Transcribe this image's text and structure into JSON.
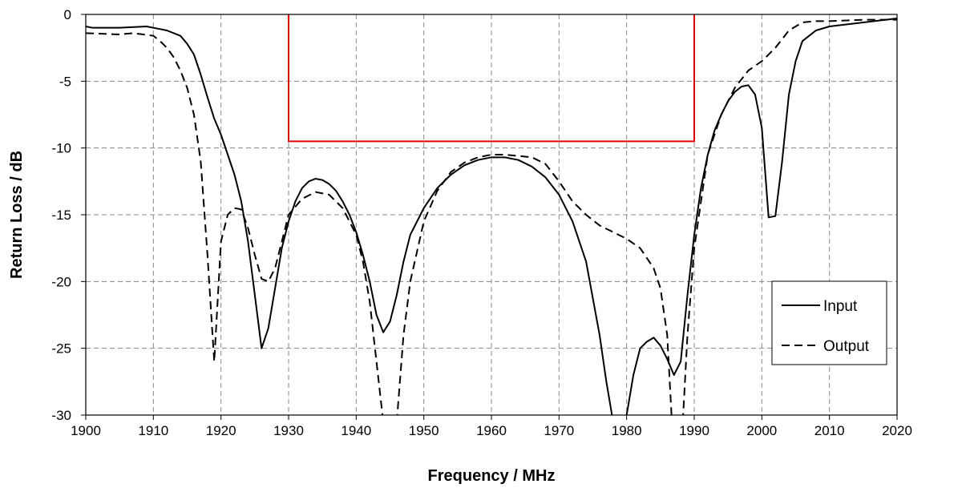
{
  "chart_data": {
    "type": "line",
    "title": "",
    "xlabel": "Frequency / MHz",
    "ylabel": "Return Loss / dB",
    "xlim": [
      1900,
      2020
    ],
    "ylim": [
      -30,
      0
    ],
    "xticks": [
      1900,
      1910,
      1920,
      1930,
      1940,
      1950,
      1960,
      1970,
      1980,
      1990,
      2000,
      2010,
      2020
    ],
    "yticks": [
      0,
      -5,
      -10,
      -15,
      -20,
      -25,
      -30
    ],
    "grid": true,
    "legend_position": "lower-right",
    "mask": {
      "color": "#e00000",
      "x": [
        1930,
        1930,
        1990,
        1990
      ],
      "y": [
        0,
        -9.5,
        -9.5,
        0
      ]
    },
    "series": [
      {
        "name": "Input",
        "style": "solid",
        "x": [
          1900,
          1901,
          1905,
          1909,
          1910,
          1912,
          1914,
          1915,
          1916,
          1917,
          1918,
          1919,
          1920,
          1921,
          1922,
          1923,
          1924,
          1925,
          1926,
          1927,
          1928,
          1929,
          1930,
          1931,
          1932,
          1933,
          1934,
          1935,
          1936,
          1937,
          1938,
          1939,
          1940,
          1941,
          1942,
          1943,
          1944,
          1945,
          1946,
          1947,
          1948,
          1950,
          1952,
          1954,
          1956,
          1958,
          1960,
          1962,
          1964,
          1966,
          1968,
          1970,
          1972,
          1974,
          1976,
          1977,
          1978,
          1979,
          1980,
          1981,
          1982,
          1983,
          1984,
          1985,
          1986,
          1987,
          1988,
          1989,
          1990,
          1991,
          1992,
          1993,
          1994,
          1995,
          1996,
          1997,
          1998,
          1999,
          2000,
          2001,
          2002,
          2003,
          2004,
          2005,
          2006,
          2008,
          2010,
          2015,
          2020
        ],
        "y": [
          -0.9,
          -1.0,
          -1.0,
          -0.9,
          -1.0,
          -1.2,
          -1.6,
          -2.2,
          -3.0,
          -4.5,
          -6.2,
          -7.8,
          -9.0,
          -10.5,
          -12.0,
          -14.0,
          -17.0,
          -21.0,
          -25.0,
          -23.5,
          -20.5,
          -17.5,
          -15.5,
          -14.0,
          -13.0,
          -12.5,
          -12.3,
          -12.4,
          -12.7,
          -13.2,
          -14.0,
          -15.0,
          -16.3,
          -18.0,
          -20.0,
          -22.5,
          -23.8,
          -23.0,
          -21.0,
          -18.5,
          -16.5,
          -14.5,
          -13.0,
          -12.0,
          -11.3,
          -10.9,
          -10.7,
          -10.7,
          -10.9,
          -11.4,
          -12.2,
          -13.5,
          -15.5,
          -18.5,
          -24.0,
          -27.5,
          -30.5,
          -31.0,
          -30.0,
          -27.0,
          -25.0,
          -24.5,
          -24.2,
          -24.8,
          -25.8,
          -27.0,
          -26.0,
          -21.0,
          -16.5,
          -13.0,
          -10.5,
          -8.7,
          -7.5,
          -6.5,
          -5.8,
          -5.4,
          -5.3,
          -6.0,
          -8.5,
          -15.2,
          -15.1,
          -11.0,
          -6.0,
          -3.5,
          -2.0,
          -1.2,
          -0.9,
          -0.6,
          -0.3
        ]
      },
      {
        "name": "Output",
        "style": "dashed",
        "x": [
          1900,
          1905,
          1907,
          1910,
          1911,
          1912,
          1913,
          1914,
          1915,
          1916,
          1917,
          1918,
          1919,
          1920,
          1921,
          1922,
          1923,
          1924,
          1925,
          1926,
          1927,
          1928,
          1929,
          1930,
          1932,
          1934,
          1936,
          1938,
          1940,
          1941,
          1942,
          1943,
          1944,
          1944.7,
          1946,
          1947,
          1948,
          1950,
          1952,
          1954,
          1956,
          1958,
          1960,
          1962,
          1964,
          1966,
          1968,
          1970,
          1972,
          1974,
          1976,
          1978,
          1980,
          1982,
          1984,
          1985,
          1986,
          1986.8,
          1988.2,
          1989,
          1990,
          1992,
          1994,
          1996,
          1998,
          2000,
          2002,
          2004,
          2006,
          2008,
          2010,
          2015,
          2020
        ],
        "y": [
          -1.4,
          -1.5,
          -1.4,
          -1.6,
          -2.0,
          -2.5,
          -3.2,
          -4.2,
          -5.5,
          -7.5,
          -11.0,
          -18.0,
          -26.0,
          -17.0,
          -15.0,
          -14.5,
          -14.6,
          -16.0,
          -18.0,
          -19.8,
          -20.0,
          -19.0,
          -17.0,
          -15.0,
          -13.8,
          -13.3,
          -13.5,
          -14.5,
          -16.5,
          -18.5,
          -21.5,
          -26.0,
          -30.5,
          -31.5,
          -30.5,
          -24.0,
          -20.0,
          -15.5,
          -13.2,
          -11.8,
          -11.1,
          -10.7,
          -10.5,
          -10.5,
          -10.6,
          -10.7,
          -11.2,
          -12.5,
          -14.0,
          -15.0,
          -15.8,
          -16.3,
          -16.8,
          -17.5,
          -19.0,
          -20.5,
          -24.0,
          -31.5,
          -31.5,
          -24.0,
          -17.5,
          -10.5,
          -7.5,
          -5.5,
          -4.2,
          -3.5,
          -2.5,
          -1.2,
          -0.6,
          -0.5,
          -0.5,
          -0.4,
          -0.4
        ]
      }
    ]
  }
}
